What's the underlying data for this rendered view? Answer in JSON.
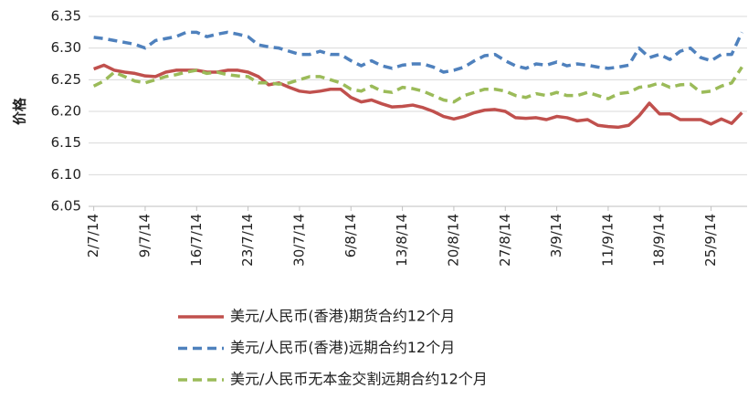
{
  "chart_data": {
    "type": "line",
    "y_label": "价格",
    "categories": [
      "2/7/14",
      null,
      null,
      null,
      null,
      "9/7/14",
      null,
      null,
      null,
      null,
      "16/7/14",
      null,
      null,
      null,
      null,
      "23/7/14",
      null,
      null,
      null,
      null,
      "30/7/14",
      null,
      null,
      null,
      null,
      "6/8/14",
      null,
      null,
      null,
      null,
      "13/8/14",
      null,
      null,
      null,
      null,
      "20/8/14",
      null,
      null,
      null,
      null,
      "27/8/14",
      null,
      null,
      null,
      null,
      "3/9/14",
      null,
      null,
      null,
      null,
      "11/9/14",
      null,
      null,
      null,
      null,
      "18/9/14",
      null,
      null,
      null,
      null,
      "25/9/14",
      null,
      null,
      null
    ],
    "ylim": [
      6.05,
      6.35
    ],
    "yticks": [
      6.05,
      {
        "value": 6.1,
        "label": "6.10"
      },
      6.15,
      {
        "value": 6.2,
        "label": "6.20"
      },
      6.25,
      {
        "value": 6.3,
        "label": "6.30"
      },
      6.35
    ],
    "grid": true,
    "legend": "bottom",
    "series": [
      {
        "name": "美元/人民币(香港)期货合约12个月",
        "color": "#c0504d",
        "line_style": "solid",
        "values": [
          6.267,
          6.273,
          6.265,
          6.262,
          6.26,
          6.256,
          6.255,
          6.262,
          6.265,
          6.265,
          6.265,
          6.262,
          6.262,
          6.265,
          6.265,
          6.262,
          6.255,
          6.242,
          6.245,
          6.238,
          6.232,
          6.23,
          6.232,
          6.235,
          6.235,
          6.222,
          6.215,
          6.218,
          6.212,
          6.207,
          6.208,
          6.21,
          6.206,
          6.2,
          6.192,
          6.188,
          6.192,
          6.198,
          6.202,
          6.203,
          6.2,
          6.19,
          6.189,
          6.19,
          6.187,
          6.192,
          6.19,
          6.185,
          6.187,
          6.178,
          6.176,
          6.175,
          6.178,
          6.193,
          6.213,
          6.196,
          6.196,
          6.187,
          6.187,
          6.187,
          6.18,
          6.188,
          6.181,
          6.198
        ]
      },
      {
        "name": "美元/人民币(香港)远期合约12个月",
        "color": "#4f81bd",
        "line_style": "dashed",
        "values": [
          6.317,
          6.315,
          6.312,
          6.309,
          6.306,
          6.3,
          6.312,
          6.315,
          6.318,
          6.325,
          6.325,
          6.318,
          6.322,
          6.325,
          6.322,
          6.318,
          6.305,
          6.302,
          6.3,
          6.295,
          6.29,
          6.29,
          6.295,
          6.29,
          6.29,
          6.28,
          6.272,
          6.28,
          6.272,
          6.268,
          6.273,
          6.275,
          6.275,
          6.27,
          6.262,
          6.265,
          6.27,
          6.28,
          6.288,
          6.29,
          6.28,
          6.272,
          6.268,
          6.275,
          6.273,
          6.278,
          6.272,
          6.275,
          6.273,
          6.27,
          6.268,
          6.27,
          6.273,
          6.3,
          6.285,
          6.29,
          6.282,
          6.295,
          6.3,
          6.285,
          6.28,
          6.29,
          6.29,
          6.325
        ]
      },
      {
        "name": "美元/人民币无本金交割远期合约12个月",
        "color": "#9bbb59",
        "line_style": "dashed",
        "values": [
          6.24,
          6.248,
          6.262,
          6.255,
          6.248,
          6.245,
          6.25,
          6.255,
          6.258,
          6.262,
          6.265,
          6.26,
          6.262,
          6.258,
          6.256,
          6.255,
          6.245,
          6.245,
          6.243,
          6.245,
          6.25,
          6.255,
          6.255,
          6.25,
          6.245,
          6.235,
          6.232,
          6.24,
          6.232,
          6.23,
          6.238,
          6.236,
          6.232,
          6.225,
          6.218,
          6.215,
          6.225,
          6.23,
          6.235,
          6.235,
          6.232,
          6.225,
          6.222,
          6.228,
          6.225,
          6.23,
          6.225,
          6.225,
          6.23,
          6.225,
          6.22,
          6.228,
          6.23,
          6.238,
          6.24,
          6.245,
          6.238,
          6.242,
          6.243,
          6.23,
          6.232,
          6.24,
          6.245,
          6.27
        ]
      }
    ]
  }
}
